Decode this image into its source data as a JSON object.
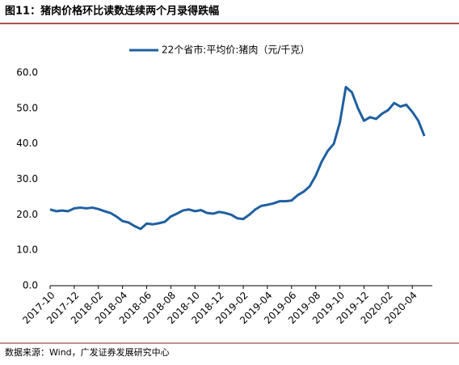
{
  "chart_data": {
    "type": "line",
    "title": "图11：猪肉价格环比读数连续两个月录得跌幅",
    "source": "数据来源：Wind，广发证券发展研究中心",
    "categories": [
      "2017-10",
      null,
      null,
      null,
      "2017-12",
      null,
      null,
      null,
      "2018-02",
      null,
      null,
      null,
      "2018-04",
      null,
      null,
      null,
      "2018-06",
      null,
      null,
      null,
      "2018-08",
      null,
      null,
      null,
      "2018-10",
      null,
      null,
      null,
      "2018-12",
      null,
      null,
      null,
      "2019-02",
      null,
      null,
      null,
      "2019-04",
      null,
      null,
      null,
      "2019-06",
      null,
      null,
      null,
      "2019-08",
      null,
      null,
      null,
      "2019-10",
      null,
      null,
      null,
      "2019-12",
      null,
      null,
      null,
      "2020-02",
      null,
      null,
      null,
      "2020-04",
      null,
      null
    ],
    "series": [
      {
        "name": "22个省市:平均价:猪肉（元/千克）",
        "color": "#1f5fa0",
        "values": [
          21.5,
          21.0,
          21.2,
          21.0,
          21.8,
          22.0,
          21.8,
          22.0,
          21.6,
          21.0,
          20.5,
          19.5,
          18.2,
          17.8,
          16.8,
          16.0,
          17.5,
          17.3,
          17.6,
          18.0,
          19.5,
          20.3,
          21.2,
          21.5,
          21.0,
          21.3,
          20.5,
          20.3,
          20.8,
          20.5,
          20.0,
          19.0,
          18.8,
          20.0,
          21.5,
          22.5,
          22.8,
          23.2,
          23.8,
          23.8,
          24.0,
          25.5,
          26.5,
          28.0,
          31.0,
          35.0,
          38.0,
          40.0,
          46.0,
          56.0,
          54.5,
          50.0,
          46.5,
          47.5,
          47.0,
          48.5,
          49.5,
          51.5,
          50.5,
          51.0,
          49.0,
          46.5,
          42.2
        ]
      }
    ],
    "ylim": [
      0,
      60
    ],
    "yticks": [
      {
        "value": 0,
        "label": "0.0"
      },
      {
        "value": 10,
        "label": "10.0"
      },
      {
        "value": 20,
        "label": "20.0"
      },
      {
        "value": 30,
        "label": "30.0"
      },
      {
        "value": 40,
        "label": "40.0"
      },
      {
        "value": 50,
        "label": "50.0"
      },
      {
        "value": 60,
        "label": "60.0"
      }
    ],
    "legend": "top"
  }
}
